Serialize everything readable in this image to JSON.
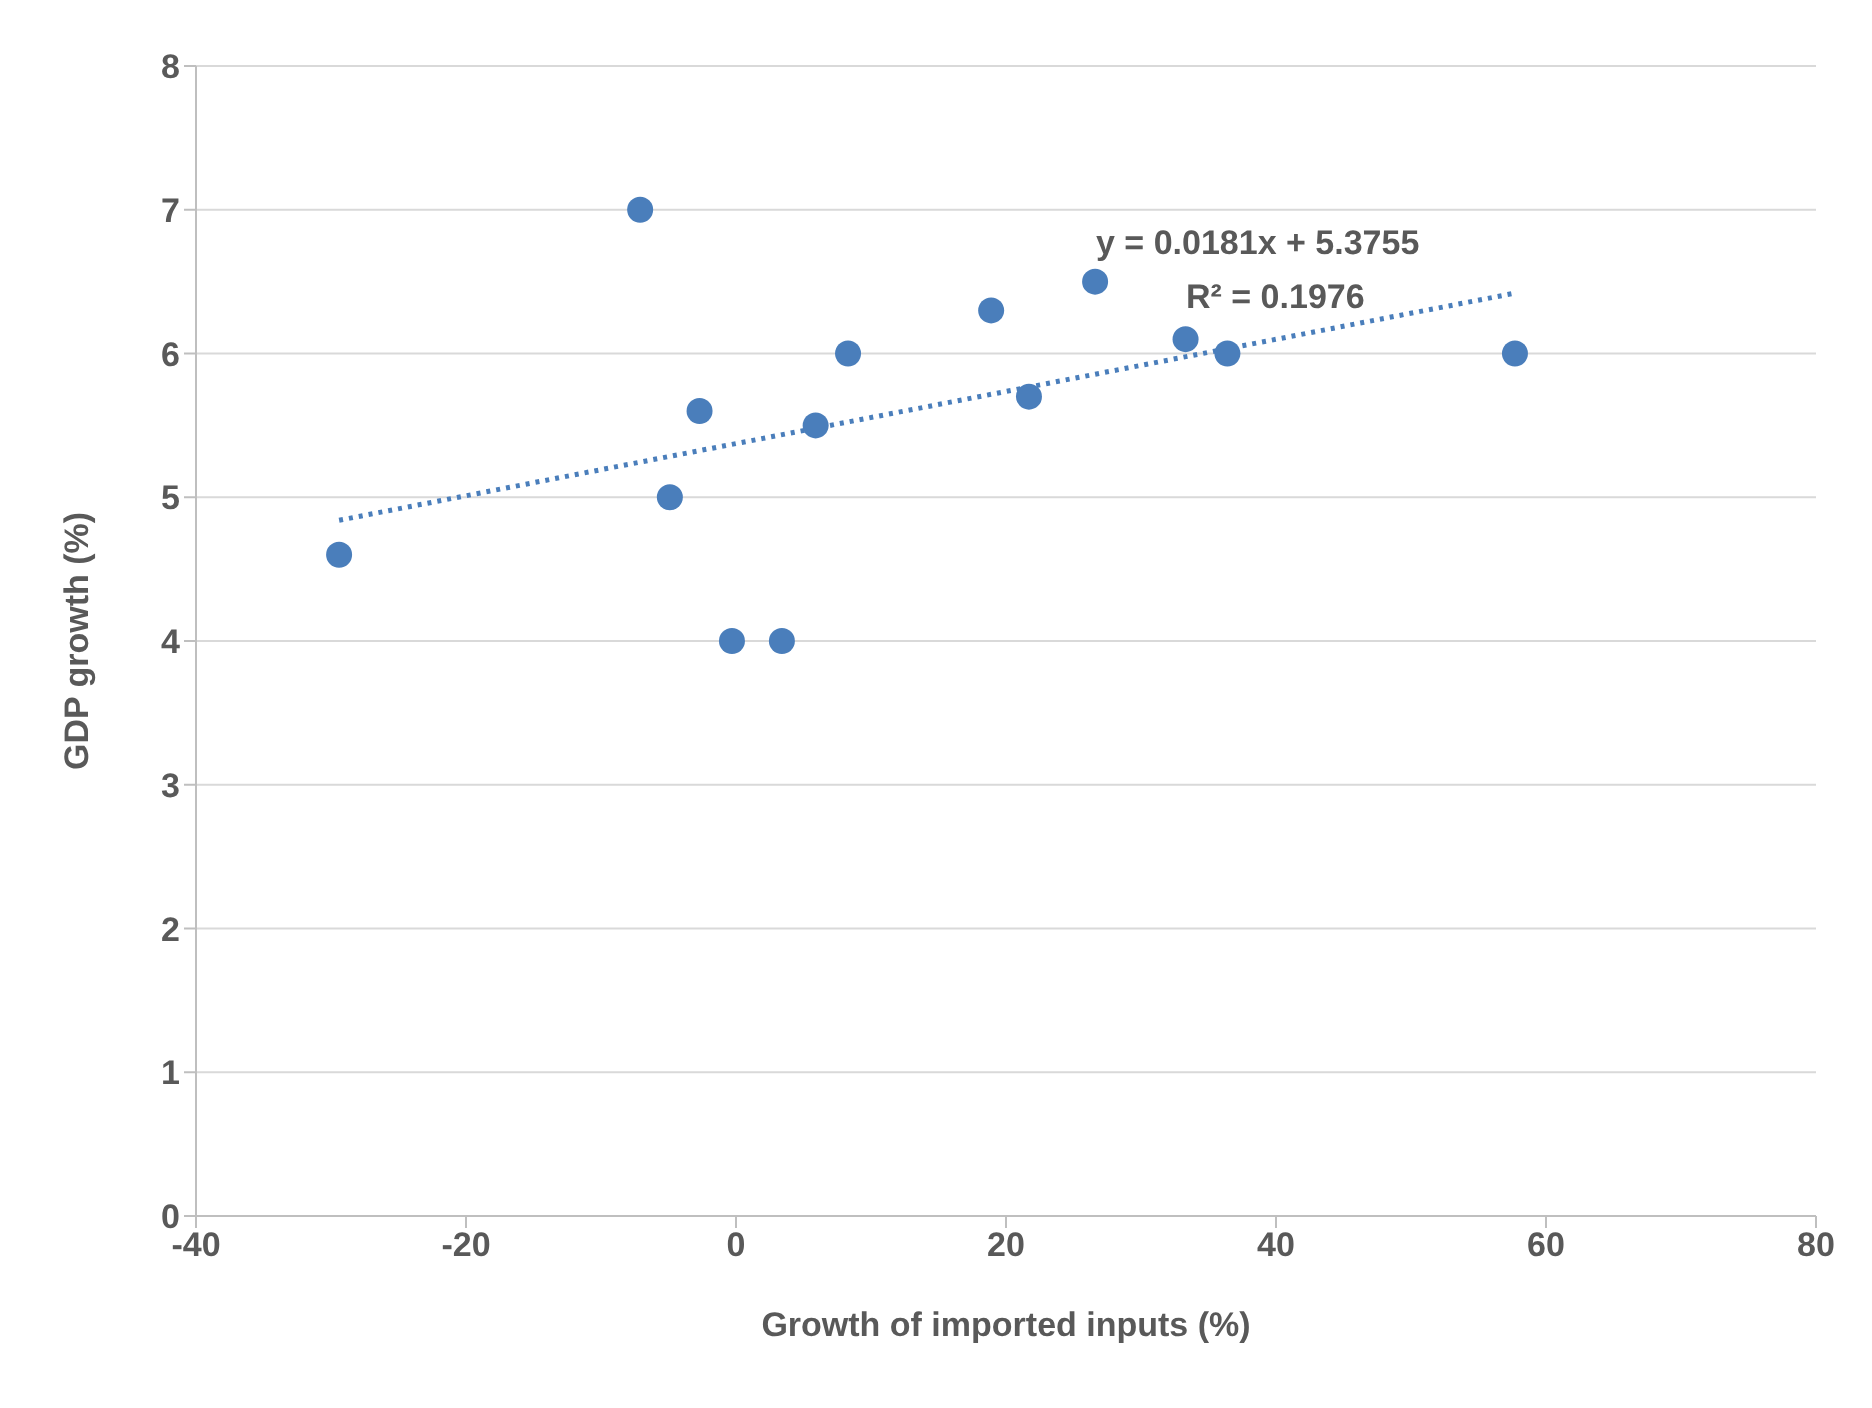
{
  "chart_data": {
    "type": "scatter",
    "xlabel": "Growth of imported inputs (%)",
    "ylabel": "GDP growth (%)",
    "xlim": [
      -40,
      80
    ],
    "xticks": [
      -40,
      -20,
      0,
      20,
      40,
      60,
      80
    ],
    "ylim": [
      0,
      8
    ],
    "yticks": [
      0,
      1,
      2,
      3,
      4,
      5,
      6,
      7,
      8
    ],
    "grid": "y",
    "series": [
      {
        "color": "#4a7ebb",
        "marker": "circle",
        "x": [
          -29.4,
          -7.1,
          -4.9,
          -2.7,
          -0.3,
          3.4,
          5.9,
          8.3,
          18.9,
          21.7,
          26.6,
          33.3,
          36.4,
          57.7
        ],
        "values": [
          4.6,
          7.0,
          5.0,
          5.6,
          4.0,
          4.0,
          5.5,
          6.0,
          6.3,
          5.7,
          6.5,
          6.1,
          6.0,
          6.0
        ]
      },
      {
        "type": "line",
        "color": "#4a7ebb",
        "line_style": "dotted",
        "marker": "none",
        "x": [
          -29.4,
          57.7
        ],
        "values": [
          4.84,
          6.42
        ]
      }
    ],
    "annotations": [
      "y = 0.0181x + 5.3755",
      "R² = 0.1976"
    ]
  }
}
